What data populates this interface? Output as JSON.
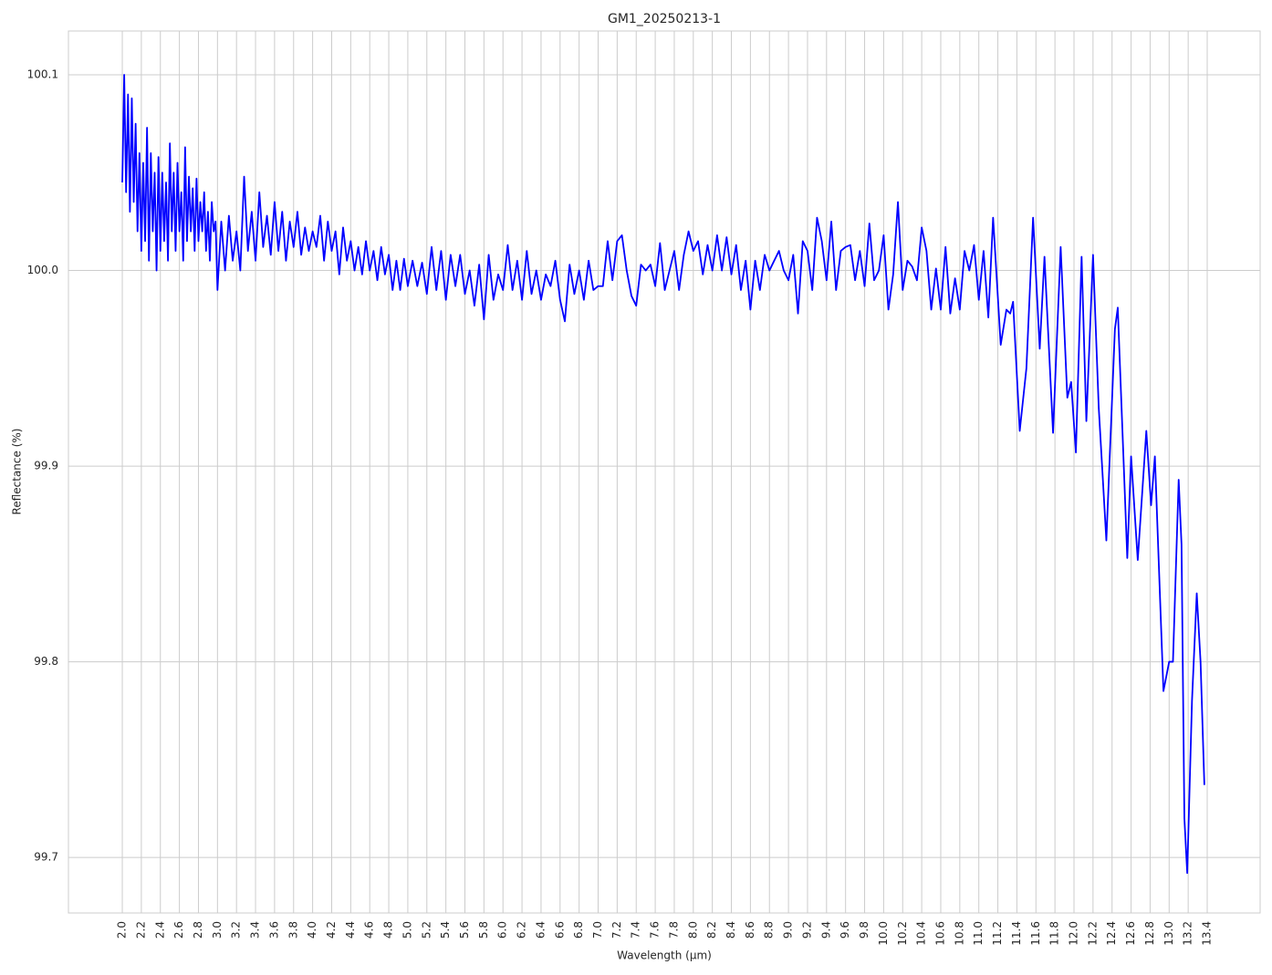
{
  "chart_data": {
    "type": "line",
    "title": "GM1_20250213-1",
    "x_label": "Wavelength (µm)",
    "y_label": "Reflectance (%)",
    "color": "#0000ff",
    "grid": true,
    "xlim": [
      1.434,
      13.956
    ],
    "ylim": [
      99.6716,
      100.1224
    ],
    "xticks": [
      {
        "value": 2.0,
        "label": "2.0"
      },
      {
        "value": 2.2,
        "label": "2.2"
      },
      {
        "value": 2.4,
        "label": "2.4"
      },
      {
        "value": 2.6,
        "label": "2.6"
      },
      {
        "value": 2.8,
        "label": "2.8"
      },
      {
        "value": 3.0,
        "label": "3.0"
      },
      {
        "value": 3.2,
        "label": "3.2"
      },
      {
        "value": 3.4,
        "label": "3.4"
      },
      {
        "value": 3.6,
        "label": "3.6"
      },
      {
        "value": 3.8,
        "label": "3.8"
      },
      {
        "value": 4.0,
        "label": "4.0"
      },
      {
        "value": 4.2,
        "label": "4.2"
      },
      {
        "value": 4.4,
        "label": "4.4"
      },
      {
        "value": 4.6,
        "label": "4.6"
      },
      {
        "value": 4.8,
        "label": "4.8"
      },
      {
        "value": 5.0,
        "label": "5.0"
      },
      {
        "value": 5.2,
        "label": "5.2"
      },
      {
        "value": 5.4,
        "label": "5.4"
      },
      {
        "value": 5.6,
        "label": "5.6"
      },
      {
        "value": 5.8,
        "label": "5.8"
      },
      {
        "value": 6.0,
        "label": "6.0"
      },
      {
        "value": 6.2,
        "label": "6.2"
      },
      {
        "value": 6.4,
        "label": "6.4"
      },
      {
        "value": 6.6,
        "label": "6.6"
      },
      {
        "value": 6.8,
        "label": "6.8"
      },
      {
        "value": 7.0,
        "label": "7.0"
      },
      {
        "value": 7.2,
        "label": "7.2"
      },
      {
        "value": 7.4,
        "label": "7.4"
      },
      {
        "value": 7.6,
        "label": "7.6"
      },
      {
        "value": 7.8,
        "label": "7.8"
      },
      {
        "value": 8.0,
        "label": "8.0"
      },
      {
        "value": 8.2,
        "label": "8.2"
      },
      {
        "value": 8.4,
        "label": "8.4"
      },
      {
        "value": 8.6,
        "label": "8.6"
      },
      {
        "value": 8.8,
        "label": "8.8"
      },
      {
        "value": 9.0,
        "label": "9.0"
      },
      {
        "value": 9.2,
        "label": "9.2"
      },
      {
        "value": 9.4,
        "label": "9.4"
      },
      {
        "value": 9.6,
        "label": "9.6"
      },
      {
        "value": 9.8,
        "label": "9.8"
      },
      {
        "value": 10.0,
        "label": "10.0"
      },
      {
        "value": 10.2,
        "label": "10.2"
      },
      {
        "value": 10.4,
        "label": "10.4"
      },
      {
        "value": 10.6,
        "label": "10.6"
      },
      {
        "value": 10.8,
        "label": "10.8"
      },
      {
        "value": 11.0,
        "label": "11.0"
      },
      {
        "value": 11.2,
        "label": "11.2"
      },
      {
        "value": 11.4,
        "label": "11.4"
      },
      {
        "value": 11.6,
        "label": "11.6"
      },
      {
        "value": 11.8,
        "label": "11.8"
      },
      {
        "value": 12.0,
        "label": "12.0"
      },
      {
        "value": 12.2,
        "label": "12.2"
      },
      {
        "value": 12.4,
        "label": "12.4"
      },
      {
        "value": 12.6,
        "label": "12.6"
      },
      {
        "value": 12.8,
        "label": "12.8"
      },
      {
        "value": 13.0,
        "label": "13.0"
      },
      {
        "value": 13.2,
        "label": "13.2"
      },
      {
        "value": 13.4,
        "label": "13.4"
      }
    ],
    "yticks": [
      99.7,
      99.8,
      99.9,
      {
        "value": 100.0,
        "label": "100.0"
      },
      100.1
    ],
    "x": [
      2.0,
      2.02,
      2.04,
      2.06,
      2.08,
      2.1,
      2.12,
      2.14,
      2.16,
      2.18,
      2.2,
      2.22,
      2.24,
      2.26,
      2.28,
      2.3,
      2.32,
      2.34,
      2.36,
      2.38,
      2.4,
      2.42,
      2.44,
      2.46,
      2.48,
      2.5,
      2.52,
      2.54,
      2.56,
      2.58,
      2.6,
      2.62,
      2.64,
      2.66,
      2.68,
      2.7,
      2.72,
      2.74,
      2.76,
      2.78,
      2.8,
      2.82,
      2.84,
      2.86,
      2.88,
      2.9,
      2.92,
      2.94,
      2.96,
      2.98,
      3.0,
      3.04,
      3.08,
      3.12,
      3.16,
      3.2,
      3.24,
      3.28,
      3.32,
      3.36,
      3.4,
      3.44,
      3.48,
      3.52,
      3.56,
      3.6,
      3.64,
      3.68,
      3.72,
      3.76,
      3.8,
      3.84,
      3.88,
      3.92,
      3.96,
      4.0,
      4.04,
      4.08,
      4.12,
      4.16,
      4.2,
      4.24,
      4.28,
      4.32,
      4.36,
      4.4,
      4.44,
      4.48,
      4.52,
      4.56,
      4.6,
      4.64,
      4.68,
      4.72,
      4.76,
      4.8,
      4.84,
      4.88,
      4.92,
      4.96,
      5.0,
      5.05,
      5.1,
      5.15,
      5.2,
      5.25,
      5.3,
      5.35,
      5.4,
      5.45,
      5.5,
      5.55,
      5.6,
      5.65,
      5.7,
      5.75,
      5.8,
      5.85,
      5.9,
      5.95,
      6.0,
      6.05,
      6.1,
      6.15,
      6.2,
      6.25,
      6.3,
      6.35,
      6.4,
      6.45,
      6.5,
      6.55,
      6.6,
      6.65,
      6.7,
      6.75,
      6.8,
      6.85,
      6.9,
      6.95,
      7.0,
      7.05,
      7.1,
      7.15,
      7.2,
      7.25,
      7.3,
      7.35,
      7.4,
      7.45,
      7.5,
      7.55,
      7.6,
      7.65,
      7.7,
      7.75,
      7.8,
      7.85,
      7.9,
      7.95,
      8.0,
      8.05,
      8.1,
      8.15,
      8.2,
      8.25,
      8.3,
      8.35,
      8.4,
      8.45,
      8.5,
      8.55,
      8.6,
      8.65,
      8.7,
      8.75,
      8.8,
      8.85,
      8.9,
      8.95,
      9.0,
      9.05,
      9.1,
      9.15,
      9.2,
      9.25,
      9.3,
      9.35,
      9.4,
      9.45,
      9.5,
      9.55,
      9.6,
      9.65,
      9.7,
      9.75,
      9.8,
      9.85,
      9.9,
      9.95,
      10.0,
      10.05,
      10.1,
      10.15,
      10.2,
      10.25,
      10.3,
      10.35,
      10.4,
      10.45,
      10.5,
      10.55,
      10.6,
      10.65,
      10.7,
      10.75,
      10.8,
      10.85,
      10.9,
      10.95,
      11.0,
      11.05,
      11.1,
      11.15,
      11.23,
      11.29,
      11.33,
      11.36,
      11.43,
      11.5,
      11.57,
      11.64,
      11.69,
      11.78,
      11.86,
      11.93,
      11.97,
      12.02,
      12.08,
      12.13,
      12.2,
      12.26,
      12.34,
      12.43,
      12.46,
      12.56,
      12.6,
      12.67,
      12.76,
      12.81,
      12.85,
      12.94,
      13.0,
      13.04,
      13.1,
      13.13,
      13.16,
      13.19,
      13.24,
      13.29,
      13.33,
      13.37
    ],
    "values": [
      100.045,
      100.1,
      100.04,
      100.09,
      100.03,
      100.088,
      100.035,
      100.075,
      100.02,
      100.06,
      100.01,
      100.055,
      100.015,
      100.073,
      100.005,
      100.06,
      100.02,
      100.05,
      100.0,
      100.058,
      100.01,
      100.05,
      100.015,
      100.045,
      100.005,
      100.065,
      100.02,
      100.05,
      100.01,
      100.055,
      100.02,
      100.04,
      100.005,
      100.063,
      100.015,
      100.048,
      100.02,
      100.042,
      100.01,
      100.047,
      100.015,
      100.035,
      100.02,
      100.04,
      100.01,
      100.03,
      100.005,
      100.035,
      100.02,
      100.025,
      99.99,
      100.025,
      100.0,
      100.028,
      100.005,
      100.02,
      100.0,
      100.048,
      100.01,
      100.03,
      100.005,
      100.04,
      100.012,
      100.028,
      100.008,
      100.035,
      100.01,
      100.03,
      100.005,
      100.025,
      100.012,
      100.03,
      100.008,
      100.022,
      100.01,
      100.02,
      100.012,
      100.028,
      100.005,
      100.025,
      100.01,
      100.02,
      99.998,
      100.022,
      100.005,
      100.015,
      100.0,
      100.012,
      99.998,
      100.015,
      100.0,
      100.01,
      99.995,
      100.012,
      99.998,
      100.008,
      99.99,
      100.005,
      99.99,
      100.006,
      99.992,
      100.005,
      99.992,
      100.004,
      99.988,
      100.012,
      99.99,
      100.01,
      99.985,
      100.008,
      99.992,
      100.008,
      99.988,
      100.0,
      99.982,
      100.003,
      99.975,
      100.008,
      99.985,
      99.998,
      99.99,
      100.013,
      99.99,
      100.005,
      99.985,
      100.01,
      99.988,
      100.0,
      99.985,
      99.998,
      99.992,
      100.005,
      99.985,
      99.974,
      100.003,
      99.988,
      100.0,
      99.985,
      100.005,
      99.99,
      99.992,
      99.992,
      100.015,
      99.995,
      100.015,
      100.018,
      100.0,
      99.987,
      99.982,
      100.003,
      100.0,
      100.003,
      99.992,
      100.014,
      99.99,
      100.0,
      100.01,
      99.99,
      100.008,
      100.02,
      100.01,
      100.015,
      99.998,
      100.013,
      100.0,
      100.018,
      100.0,
      100.017,
      99.998,
      100.013,
      99.99,
      100.005,
      99.98,
      100.005,
      99.99,
      100.008,
      100.0,
      100.005,
      100.01,
      100.0,
      99.995,
      100.008,
      99.978,
      100.015,
      100.01,
      99.99,
      100.027,
      100.015,
      99.995,
      100.025,
      99.99,
      100.01,
      100.012,
      100.013,
      99.995,
      100.01,
      99.992,
      100.024,
      99.995,
      100.0,
      100.018,
      99.98,
      99.998,
      100.035,
      99.99,
      100.005,
      100.002,
      99.995,
      100.022,
      100.01,
      99.98,
      100.001,
      99.98,
      100.012,
      99.978,
      99.996,
      99.98,
      100.01,
      100.0,
      100.013,
      99.985,
      100.01,
      99.976,
      100.027,
      99.962,
      99.98,
      99.978,
      99.984,
      99.918,
      99.95,
      100.027,
      99.96,
      100.007,
      99.917,
      100.012,
      99.935,
      99.943,
      99.907,
      100.007,
      99.923,
      100.008,
      99.93,
      99.862,
      99.97,
      99.981,
      99.853,
      99.905,
      99.852,
      99.918,
      99.88,
      99.905,
      99.785,
      99.8,
      99.8,
      99.893,
      99.86,
      99.72,
      99.692,
      99.78,
      99.835,
      99.8,
      99.737
    ]
  }
}
